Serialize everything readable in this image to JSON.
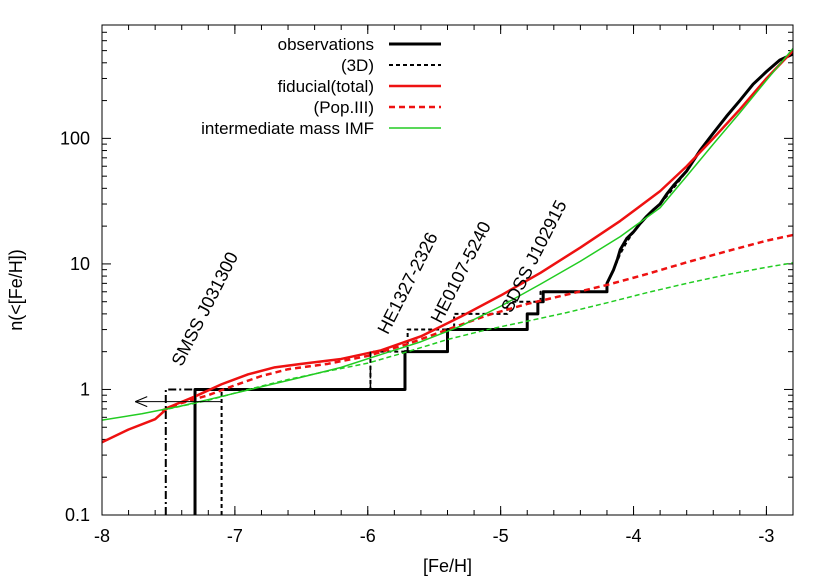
{
  "chart_data": {
    "type": "line",
    "xlabel": "[Fe/H]",
    "ylabel": "n(<[Fe/H])",
    "xlim": [
      -8,
      -2.8
    ],
    "ylim": [
      0.1,
      800
    ],
    "y_scale": "log",
    "x_ticks": [
      -8,
      -7,
      -6,
      -5,
      -4,
      -3
    ],
    "x_tick_labels": [
      "-8",
      "-7",
      "-6",
      "-5",
      "-4",
      "-3"
    ],
    "y_ticks": [
      0.1,
      1,
      10,
      100
    ],
    "y_tick_labels": [
      "0.1",
      "1",
      "10",
      "100"
    ],
    "legend_position": "top-right",
    "series": [
      {
        "name": "observations",
        "color": "#000000",
        "dash": "solid",
        "width": 3,
        "step": true,
        "x": [
          -7.3,
          -7.3,
          -5.72,
          -5.72,
          -5.4,
          -5.4,
          -4.8,
          -4.8,
          -4.72,
          -4.72,
          -4.68,
          -4.68,
          -4.2,
          -4.2,
          -4.15,
          -4.12,
          -4.1,
          -4.05,
          -4.0,
          -3.95,
          -3.9,
          -3.85,
          -3.8,
          -3.75,
          -3.7,
          -3.6,
          -3.5,
          -3.4,
          -3.3,
          -3.2,
          -3.1,
          -3.0,
          -2.9,
          -2.8
        ],
        "y": [
          0.1,
          1,
          1,
          2,
          2,
          3,
          3,
          4,
          4,
          5,
          5,
          6,
          6,
          7,
          9,
          11,
          13,
          16,
          18,
          21,
          24,
          27,
          30,
          36,
          42,
          55,
          80,
          110,
          150,
          200,
          270,
          340,
          420,
          470
        ]
      },
      {
        "name": "(3D)",
        "color": "#000000",
        "dash": "4,3",
        "width": 2,
        "step": true,
        "x": [
          -7.1,
          -7.1,
          -5.98,
          -5.98,
          -5.7,
          -5.7,
          -5.35,
          -5.35,
          -4.95,
          -4.95,
          -4.7,
          -4.7,
          -4.2,
          -4.2,
          -4.15,
          -4.1,
          -4.05,
          -4.0,
          -3.9,
          -3.8,
          -3.7,
          -3.6,
          -3.5,
          -3.4
        ],
        "y": [
          0.1,
          1,
          1,
          2,
          2,
          3,
          3,
          4,
          4,
          5,
          5,
          6,
          6,
          7,
          9,
          12,
          15,
          18,
          24,
          30,
          40,
          55,
          80,
          110
        ]
      },
      {
        "name": "fiducial(total)",
        "color": "#ee1111",
        "dash": "solid",
        "width": 2.5,
        "step": false,
        "x": [
          -8.0,
          -7.8,
          -7.6,
          -7.5,
          -7.3,
          -7.1,
          -6.9,
          -6.7,
          -6.5,
          -6.2,
          -5.9,
          -5.6,
          -5.3,
          -5.0,
          -4.7,
          -4.4,
          -4.1,
          -3.8,
          -3.6,
          -3.4,
          -3.2,
          -3.0,
          -2.8
        ],
        "y": [
          0.38,
          0.48,
          0.58,
          0.72,
          0.88,
          1.1,
          1.32,
          1.5,
          1.6,
          1.75,
          2.05,
          2.65,
          3.8,
          5.6,
          8.5,
          13.5,
          22,
          38,
          60,
          100,
          170,
          300,
          500
        ]
      },
      {
        "name": "(Pop.III)",
        "color": "#ee1111",
        "dash": "6,4",
        "width": 2.5,
        "step": false,
        "x": [
          -7.55,
          -7.4,
          -7.2,
          -7.0,
          -6.8,
          -6.6,
          -6.3,
          -6.0,
          -5.7,
          -5.4,
          -5.1,
          -4.8,
          -4.5,
          -4.2,
          -3.9,
          -3.6,
          -3.3,
          -3.0,
          -2.8
        ],
        "y": [
          0.68,
          0.78,
          0.9,
          1.08,
          1.28,
          1.45,
          1.6,
          1.85,
          2.3,
          3.0,
          3.9,
          4.8,
          5.7,
          6.8,
          8.3,
          10.3,
          12.6,
          15.3,
          17
        ]
      },
      {
        "name": "intermediate mass IMF",
        "color": "#22cc22",
        "dash": "solid",
        "width": 1.5,
        "step": false,
        "x": [
          -8.0,
          -7.7,
          -7.4,
          -7.1,
          -6.8,
          -6.5,
          -6.2,
          -5.9,
          -5.6,
          -5.3,
          -5.0,
          -4.7,
          -4.4,
          -4.1,
          -3.8,
          -3.6,
          -3.4,
          -3.2,
          -3.0,
          -2.8
        ],
        "y": [
          0.57,
          0.64,
          0.74,
          0.88,
          1.05,
          1.25,
          1.5,
          1.9,
          2.4,
          3.2,
          4.6,
          6.9,
          10.5,
          16.5,
          28,
          50,
          90,
          160,
          290,
          520
        ]
      },
      {
        "name": "",
        "color": "#22cc22",
        "dash": "5,3",
        "width": 1.5,
        "step": false,
        "x": [
          -7.5,
          -7.2,
          -6.9,
          -6.6,
          -6.3,
          -6.0,
          -5.7,
          -5.4,
          -5.1,
          -4.8,
          -4.5,
          -4.2,
          -3.9,
          -3.6,
          -3.3,
          -3.0,
          -2.8
        ],
        "y": [
          0.7,
          0.82,
          1.0,
          1.2,
          1.4,
          1.62,
          2.0,
          2.5,
          3.0,
          3.5,
          4.1,
          4.9,
          5.9,
          7.0,
          8.2,
          9.4,
          10.2
        ]
      },
      {
        "name": "",
        "color": "#000000",
        "dash": "8,3,2,3",
        "width": 2,
        "step": true,
        "x": [
          -7.52,
          -7.52,
          -7.3,
          -7.3
        ],
        "y": [
          0.1,
          1,
          1,
          0.1
        ]
      },
      {
        "name": "",
        "color": "#000000",
        "dash": "8,3,2,3",
        "width": 1.5,
        "step": true,
        "x": [
          -5.98,
          -5.98
        ],
        "y": [
          1,
          2
        ]
      }
    ],
    "arrow": {
      "from": [
        -7.1,
        0.8
      ],
      "to": [
        -7.75,
        0.8
      ]
    },
    "annotations": [
      {
        "text": "SMSS J031300",
        "x": -7.4,
        "y": 1.5,
        "angle": -63
      },
      {
        "text": "HE1327-2326",
        "x": -5.85,
        "y": 2.7,
        "angle": -63
      },
      {
        "text": "HE0107-5240",
        "x": -5.45,
        "y": 3.3,
        "angle": -63
      },
      {
        "text": "SDSS J102915",
        "x": -4.92,
        "y": 4.0,
        "angle": -63
      }
    ]
  }
}
